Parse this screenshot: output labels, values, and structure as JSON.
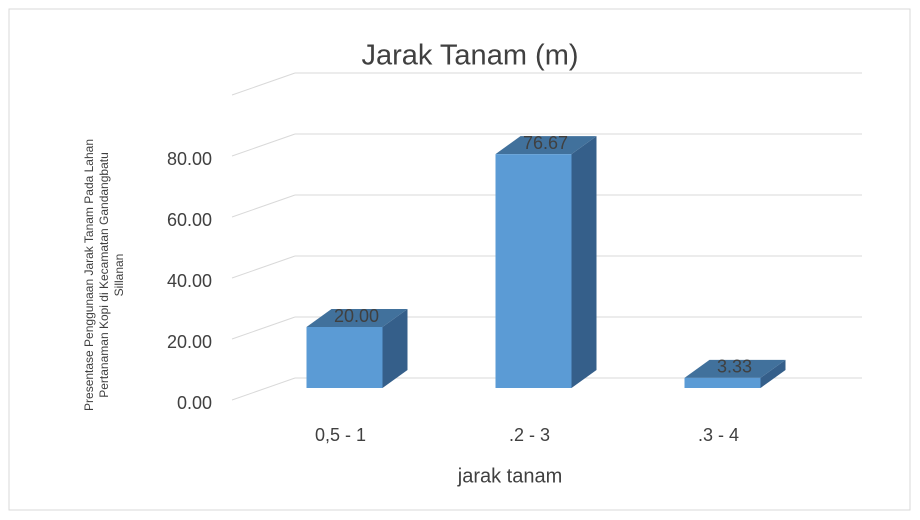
{
  "chart_data": {
    "type": "bar3d",
    "title": "Jarak Tanam (m)",
    "x_label": "jarak tanam",
    "y_label": [
      "Presentase Penggunaan  Jarak Tanam Pada Lahan",
      "Pertanaman Kopi di Kecamatan Gandangbatu",
      "Sillanan"
    ],
    "categories": [
      "0,5 - 1",
      ".2 - 3",
      ".3 - 4"
    ],
    "values": [
      20,
      76.67,
      3.33
    ],
    "value_labels": [
      "20.00",
      "76.67",
      "3.33"
    ],
    "color": "#5b9bd5",
    "ylim": [
      0,
      100
    ],
    "yticks": [
      {
        "value": 0,
        "label": "0.00"
      },
      {
        "value": 20,
        "label": "20.00"
      },
      {
        "value": 40,
        "label": "40.00"
      },
      {
        "value": 60,
        "label": "60.00"
      },
      {
        "value": 80,
        "label": "80.00"
      }
    ],
    "grid": true
  }
}
